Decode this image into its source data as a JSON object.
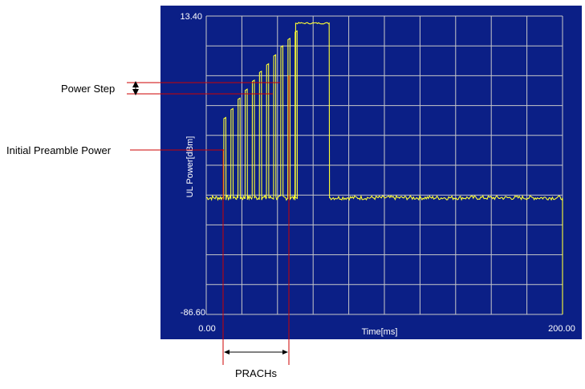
{
  "chart_data": {
    "type": "line",
    "xlabel": "Time[ms]",
    "ylabel": "UL Power[dBm]",
    "xlim": [
      0,
      200
    ],
    "ylim": [
      -86.6,
      13.4
    ],
    "x_tick_labels": [
      "0.00",
      "200.00"
    ],
    "y_tick_labels": [
      "13.40",
      "-86.60"
    ],
    "grid": true,
    "colors": {
      "background": "#0b1f86",
      "grid": "#c8c8c8",
      "trace": "#ffff33"
    },
    "noise_floor_dbm": -47.5,
    "preambles": {
      "start_ms": [
        9.8,
        13.8,
        17.8,
        21.8,
        25.8,
        29.8,
        33.8,
        37.8,
        41.8,
        45.8,
        49.8
      ],
      "peak_dbm": [
        -21.0,
        -18.0,
        -14.5,
        -11.5,
        -8.5,
        -5.5,
        -3.0,
        0.0,
        3.0,
        5.5,
        8.0
      ],
      "width_ms": 1.2
    },
    "data_burst": {
      "start_ms": 50.0,
      "end_ms": 69.0,
      "level_dbm": 11.0
    },
    "tail_level_dbm": -47.5,
    "end_ms": 200.0
  },
  "annotations": {
    "power_step": "Power Step",
    "initial_preamble_power": "Initial Preamble Power",
    "prachs": "PRACHs"
  }
}
